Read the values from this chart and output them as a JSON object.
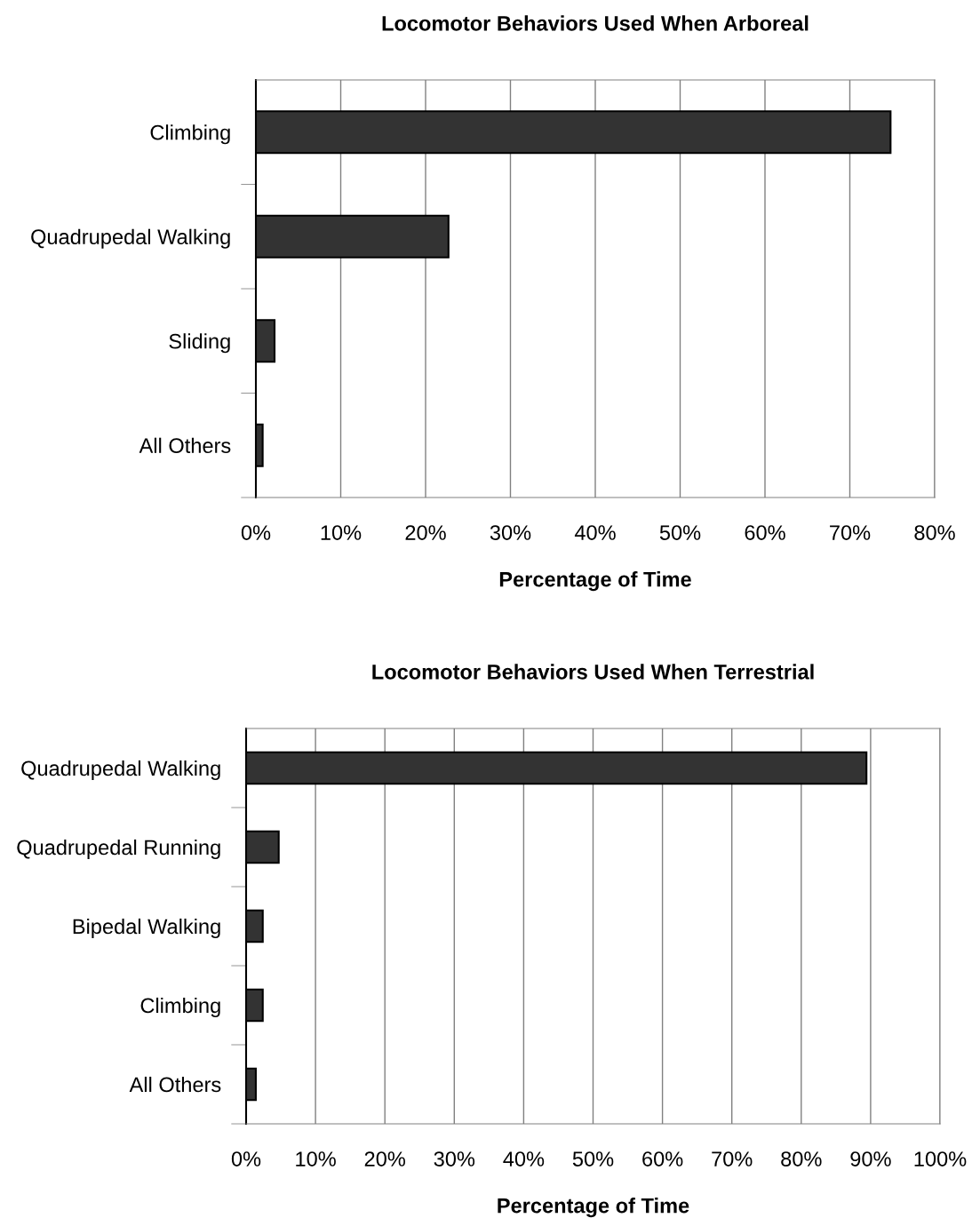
{
  "chart_data": [
    {
      "type": "bar",
      "orientation": "horizontal",
      "title": "Locomotor Behaviors Used When Arboreal",
      "xlabel": "Percentage of Time",
      "categories": [
        "Climbing",
        "Quadrupedal Walking",
        "Sliding",
        "All Others"
      ],
      "values": [
        74.8,
        22.7,
        2.2,
        0.8
      ],
      "color": "#333333",
      "grid": "x",
      "xlim": [
        0,
        80
      ],
      "xticks": [
        {
          "value": 0,
          "label": "0%"
        },
        {
          "value": 10,
          "label": "10%"
        },
        {
          "value": 20,
          "label": "20%"
        },
        {
          "value": 30,
          "label": "30%"
        },
        {
          "value": 40,
          "label": "40%"
        },
        {
          "value": 50,
          "label": "50%"
        },
        {
          "value": 60,
          "label": "60%"
        },
        {
          "value": 70,
          "label": "70%"
        },
        {
          "value": 80,
          "label": "80%"
        }
      ]
    },
    {
      "type": "bar",
      "orientation": "horizontal",
      "title": "Locomotor Behaviors Used When Terrestrial",
      "xlabel": "Percentage of Time",
      "categories": [
        "Quadrupedal Walking",
        "Quadrupedal Running",
        "Bipedal Walking",
        "Climbing",
        "All Others"
      ],
      "values": [
        89.4,
        4.7,
        2.4,
        2.4,
        1.4
      ],
      "color": "#333333",
      "grid": "x",
      "xlim": [
        0,
        100
      ],
      "xticks": [
        {
          "value": 0,
          "label": "0%"
        },
        {
          "value": 10,
          "label": "10%"
        },
        {
          "value": 20,
          "label": "20%"
        },
        {
          "value": 30,
          "label": "30%"
        },
        {
          "value": 40,
          "label": "40%"
        },
        {
          "value": 50,
          "label": "50%"
        },
        {
          "value": 60,
          "label": "60%"
        },
        {
          "value": 70,
          "label": "70%"
        },
        {
          "value": 80,
          "label": "80%"
        },
        {
          "value": 90,
          "label": "90%"
        },
        {
          "value": 100,
          "label": "100%"
        }
      ]
    }
  ]
}
